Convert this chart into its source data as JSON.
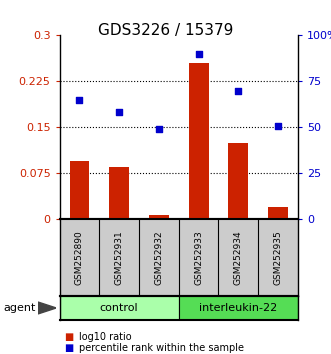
{
  "title": "GDS3226 / 15379",
  "samples": [
    "GSM252890",
    "GSM252931",
    "GSM252932",
    "GSM252933",
    "GSM252934",
    "GSM252935"
  ],
  "log10_ratio": [
    0.095,
    0.085,
    0.008,
    0.255,
    0.125,
    0.02
  ],
  "percentile_rank": [
    0.195,
    0.175,
    0.148,
    0.27,
    0.21,
    0.153
  ],
  "bar_color": "#cc2200",
  "dot_color": "#0000cc",
  "ylim_left": [
    0,
    0.3
  ],
  "ylim_right": [
    0,
    100
  ],
  "yticks_left": [
    0,
    0.075,
    0.15,
    0.225,
    0.3
  ],
  "ytick_labels_left": [
    "0",
    "0.075",
    "0.15",
    "0.225",
    "0.3"
  ],
  "yticks_right": [
    0,
    25,
    50,
    75,
    100
  ],
  "ytick_labels_right": [
    "0",
    "25",
    "50",
    "75",
    "100%"
  ],
  "hlines": [
    0.075,
    0.15,
    0.225
  ],
  "groups": [
    {
      "label": "control",
      "indices": [
        0,
        1,
        2
      ],
      "color": "#aaffaa"
    },
    {
      "label": "interleukin-22",
      "indices": [
        3,
        4,
        5
      ],
      "color": "#55dd55"
    }
  ],
  "group_row_label": "agent",
  "legend_items": [
    {
      "label": "log10 ratio",
      "color": "#cc2200"
    },
    {
      "label": "percentile rank within the sample",
      "color": "#0000cc"
    }
  ],
  "background_color": "#ffffff",
  "plot_bg_color": "#ffffff",
  "sample_row_color": "#cccccc"
}
